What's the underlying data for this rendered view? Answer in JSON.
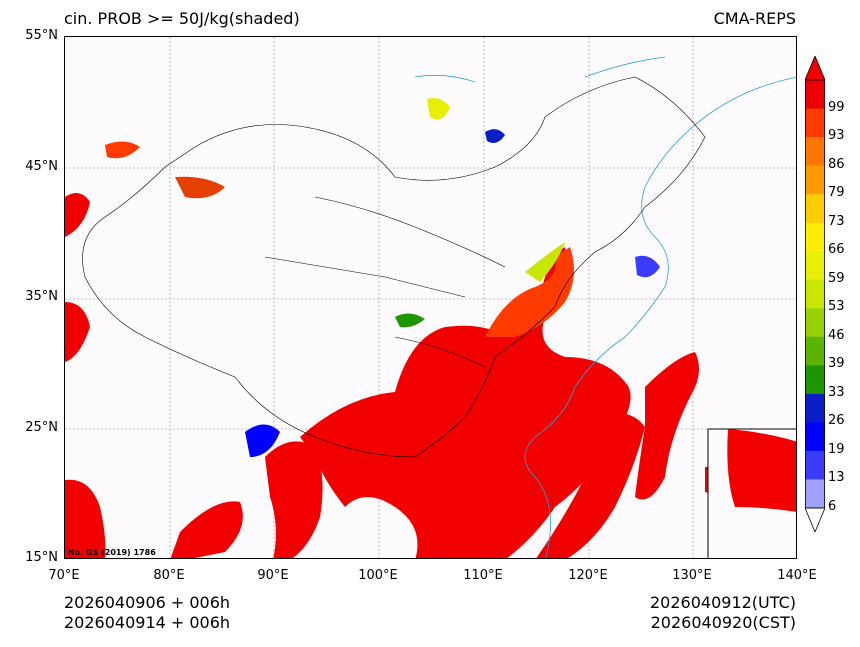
{
  "title_left": "cin. PROB >= 50J/kg(shaded)",
  "title_right": "CMA-REPS",
  "lat_labels": [
    "55°N",
    "45°N",
    "35°N",
    "25°N",
    "15°N"
  ],
  "lon_labels": [
    "70°E",
    "80°E",
    "90°E",
    "100°E",
    "110°E",
    "120°E",
    "130°E",
    "140°E"
  ],
  "stamp": "No. GS (2019) 1786",
  "footer": {
    "init_utc": "2026040906  +  006h",
    "init_cst": "2026040914  +  006h",
    "valid_utc": "2026040912(UTC)",
    "valid_cst": "2026040920(CST)"
  },
  "colorbar": {
    "levels": [
      "99",
      "93",
      "86",
      "79",
      "73",
      "66",
      "59",
      "53",
      "46",
      "39",
      "33",
      "26",
      "19",
      "13",
      "6"
    ],
    "colors": [
      "#ee0000",
      "#ff3b00",
      "#ff7700",
      "#ff9900",
      "#ffcc00",
      "#ffee00",
      "#e6f000",
      "#c8e600",
      "#96d200",
      "#5ab400",
      "#1e9600",
      "#0a1ec8",
      "#0000ff",
      "#3c3cff",
      "#a0a0ff"
    ],
    "over_color": "#ee0000",
    "under_color": "#ffffff"
  },
  "colors": {
    "high_prob": "#f20000",
    "map_background": "#fdfbfd",
    "coastline": "#2aa0d8",
    "border": "#000000"
  }
}
